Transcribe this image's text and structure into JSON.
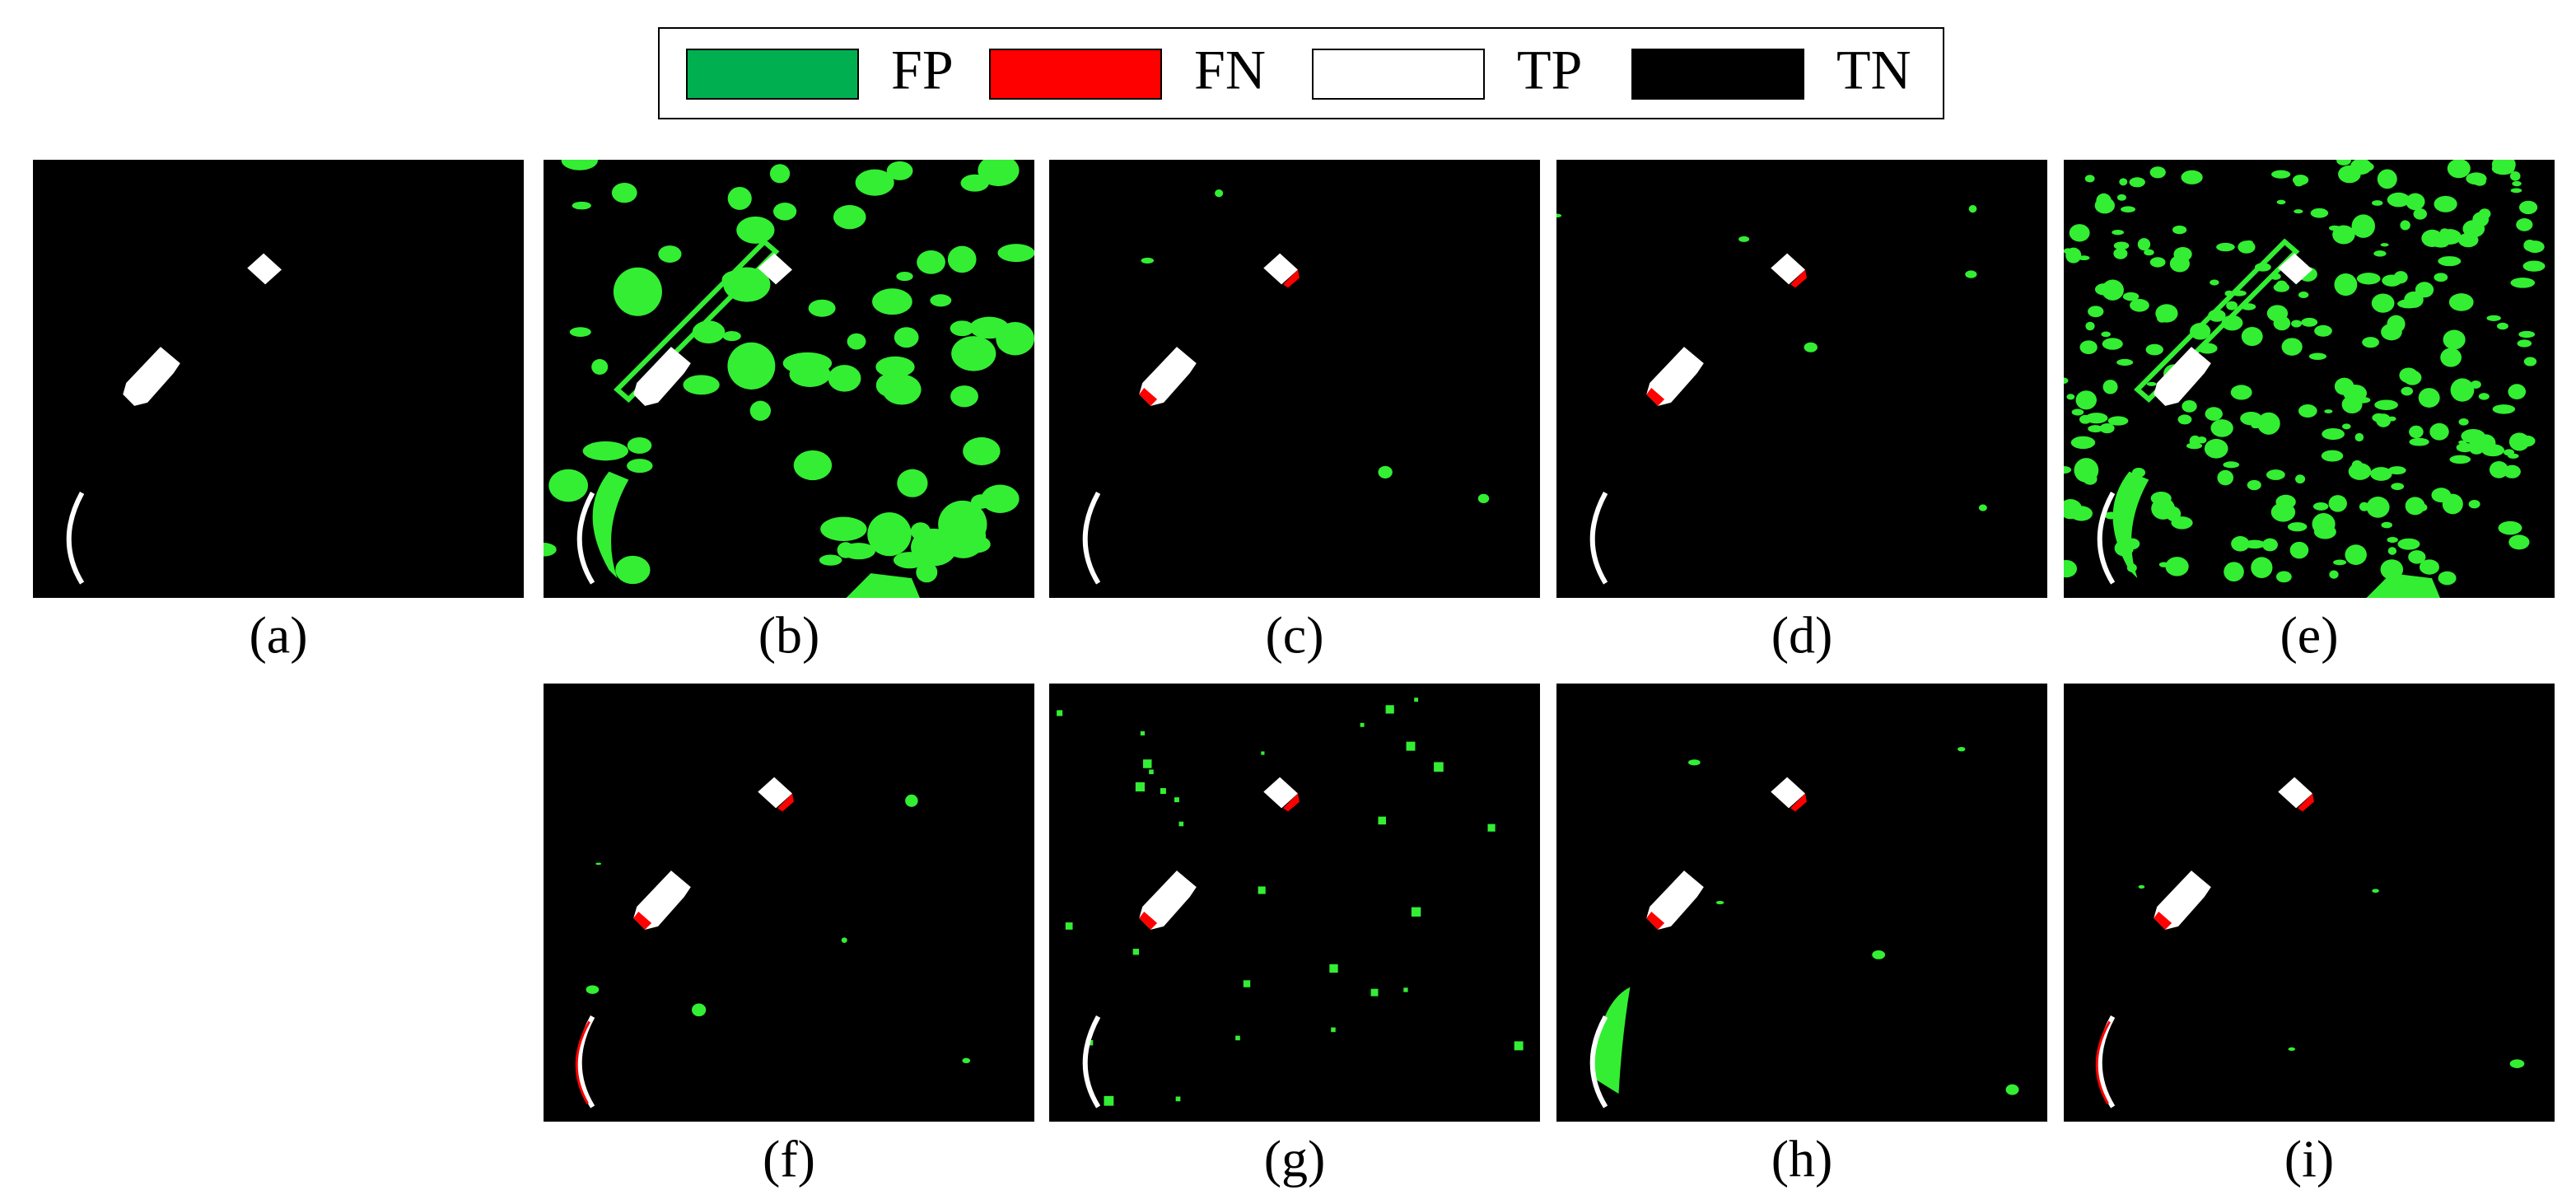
{
  "legend": [
    {
      "label": "FP"
    },
    {
      "label": "FN"
    },
    {
      "label": "TP"
    },
    {
      "label": "TN"
    }
  ],
  "panels": [
    "(a)",
    "(b)",
    "(c)",
    "(d)",
    "(e)",
    "(f)",
    "(g)",
    "(h)",
    "(i)"
  ]
}
